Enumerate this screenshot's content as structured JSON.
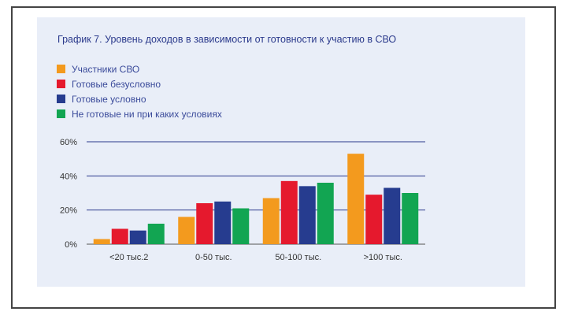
{
  "chart_data": {
    "type": "bar",
    "title": "График 7. Уровень доходов в зависимости от готовности к участию в СВО",
    "categories": [
      "<20 тыс.2",
      "0-50 тыс.",
      "50-100 тыс.",
      ">100 тыс."
    ],
    "series": [
      {
        "name": "Участники СВО",
        "color": "#f39a1e",
        "values": [
          3,
          16,
          27,
          53
        ]
      },
      {
        "name": "Готовые безусловно",
        "color": "#e5192d",
        "values": [
          9,
          24,
          37,
          29
        ]
      },
      {
        "name": "Готовые условно",
        "color": "#263c8f",
        "values": [
          8,
          25,
          34,
          33
        ]
      },
      {
        "name": "Не готовые ни при каких условиях",
        "color": "#12a552",
        "values": [
          12,
          21,
          36,
          30
        ]
      }
    ],
    "ylim": [
      0,
      60
    ],
    "yticks": [
      "0%",
      "20%",
      "40%",
      "60%"
    ],
    "ytick_values": [
      0,
      20,
      40,
      60
    ],
    "grid": true,
    "legend_position": "top-left"
  }
}
